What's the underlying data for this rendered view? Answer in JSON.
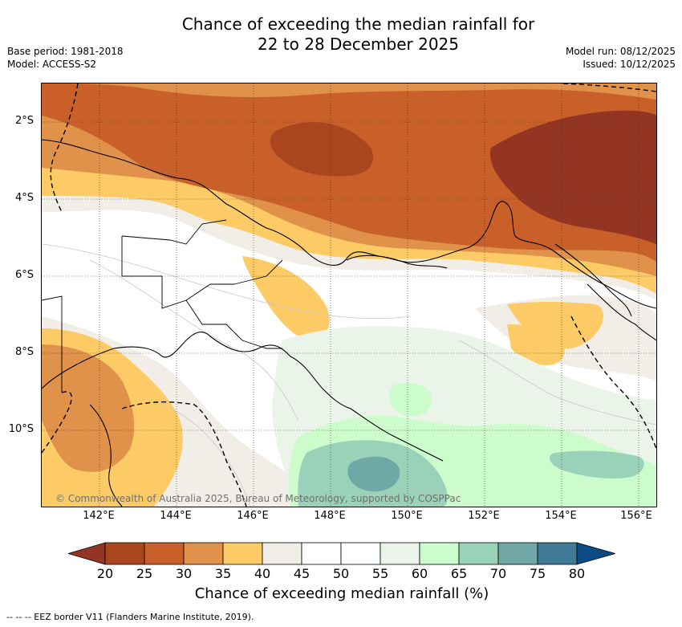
{
  "header": {
    "title_line1": "Chance of exceeding the median rainfall for",
    "title_line2": "22 to 28 December 2025",
    "base_period": "Base period: 1981-2018",
    "model": "Model: ACCESS-S2",
    "model_run": "Model run: 08/12/2025",
    "issued": "Issued: 10/12/2025"
  },
  "map": {
    "lat_labels": [
      "2°S",
      "4°S",
      "6°S",
      "8°S",
      "10°S"
    ],
    "lon_labels": [
      "142°E",
      "144°E",
      "146°E",
      "148°E",
      "150°E",
      "152°E",
      "154°E",
      "156°E"
    ],
    "copyright": "© Commonwealth of Australia 2025, Bureau of Meteorology, supported by COSPPac",
    "eez_legend": "-- -- -- EEZ border V11 (Flanders Marine Institute, 2019)."
  },
  "colorbar": {
    "label": "Chance of exceeding median rainfall (%)",
    "ticks": [
      "20",
      "25",
      "30",
      "35",
      "40",
      "45",
      "50",
      "55",
      "60",
      "65",
      "70",
      "75",
      "80"
    ],
    "colors": [
      "#a9461e",
      "#c9602a",
      "#e0914a",
      "#fccb66",
      "#f1ede7",
      "#ffffff",
      "#ffffff",
      "#eaf4e8",
      "#ccfccb",
      "#9ad1b9",
      "#70a8a6",
      "#3f7a96"
    ],
    "under_color": "#943423",
    "over_color": "#0b4c84"
  }
}
